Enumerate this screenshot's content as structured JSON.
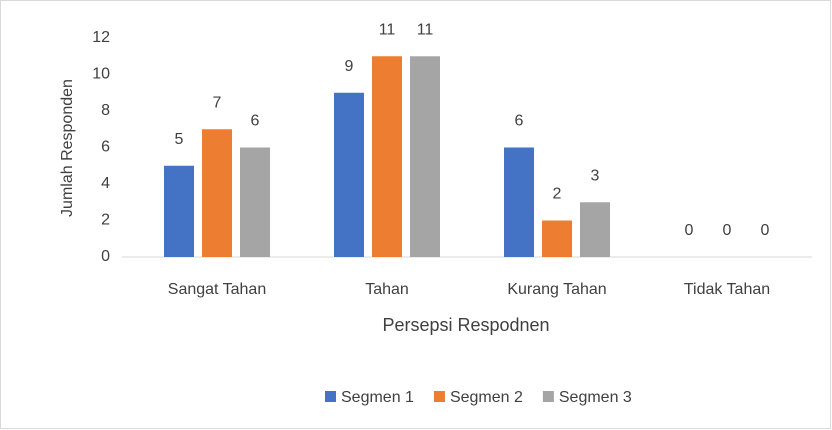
{
  "chart_data": {
    "type": "bar",
    "categories": [
      "Sangat Tahan",
      "Tahan",
      "Kurang Tahan",
      "Tidak Tahan"
    ],
    "series": [
      {
        "name": "Segmen 1",
        "color": "#4472c4",
        "values": [
          5,
          9,
          6,
          0
        ]
      },
      {
        "name": "Segmen 2",
        "color": "#ed7d31",
        "values": [
          7,
          11,
          2,
          0
        ]
      },
      {
        "name": "Segmen 3",
        "color": "#a5a5a5",
        "values": [
          6,
          11,
          3,
          0
        ]
      }
    ],
    "xlabel": "Persepsi Respodnen",
    "ylabel": "Jumlah Responden",
    "ylim": [
      0,
      12
    ],
    "yticks": [
      0,
      2,
      4,
      6,
      8,
      10,
      12
    ],
    "grid": false,
    "legend": "bottom"
  }
}
